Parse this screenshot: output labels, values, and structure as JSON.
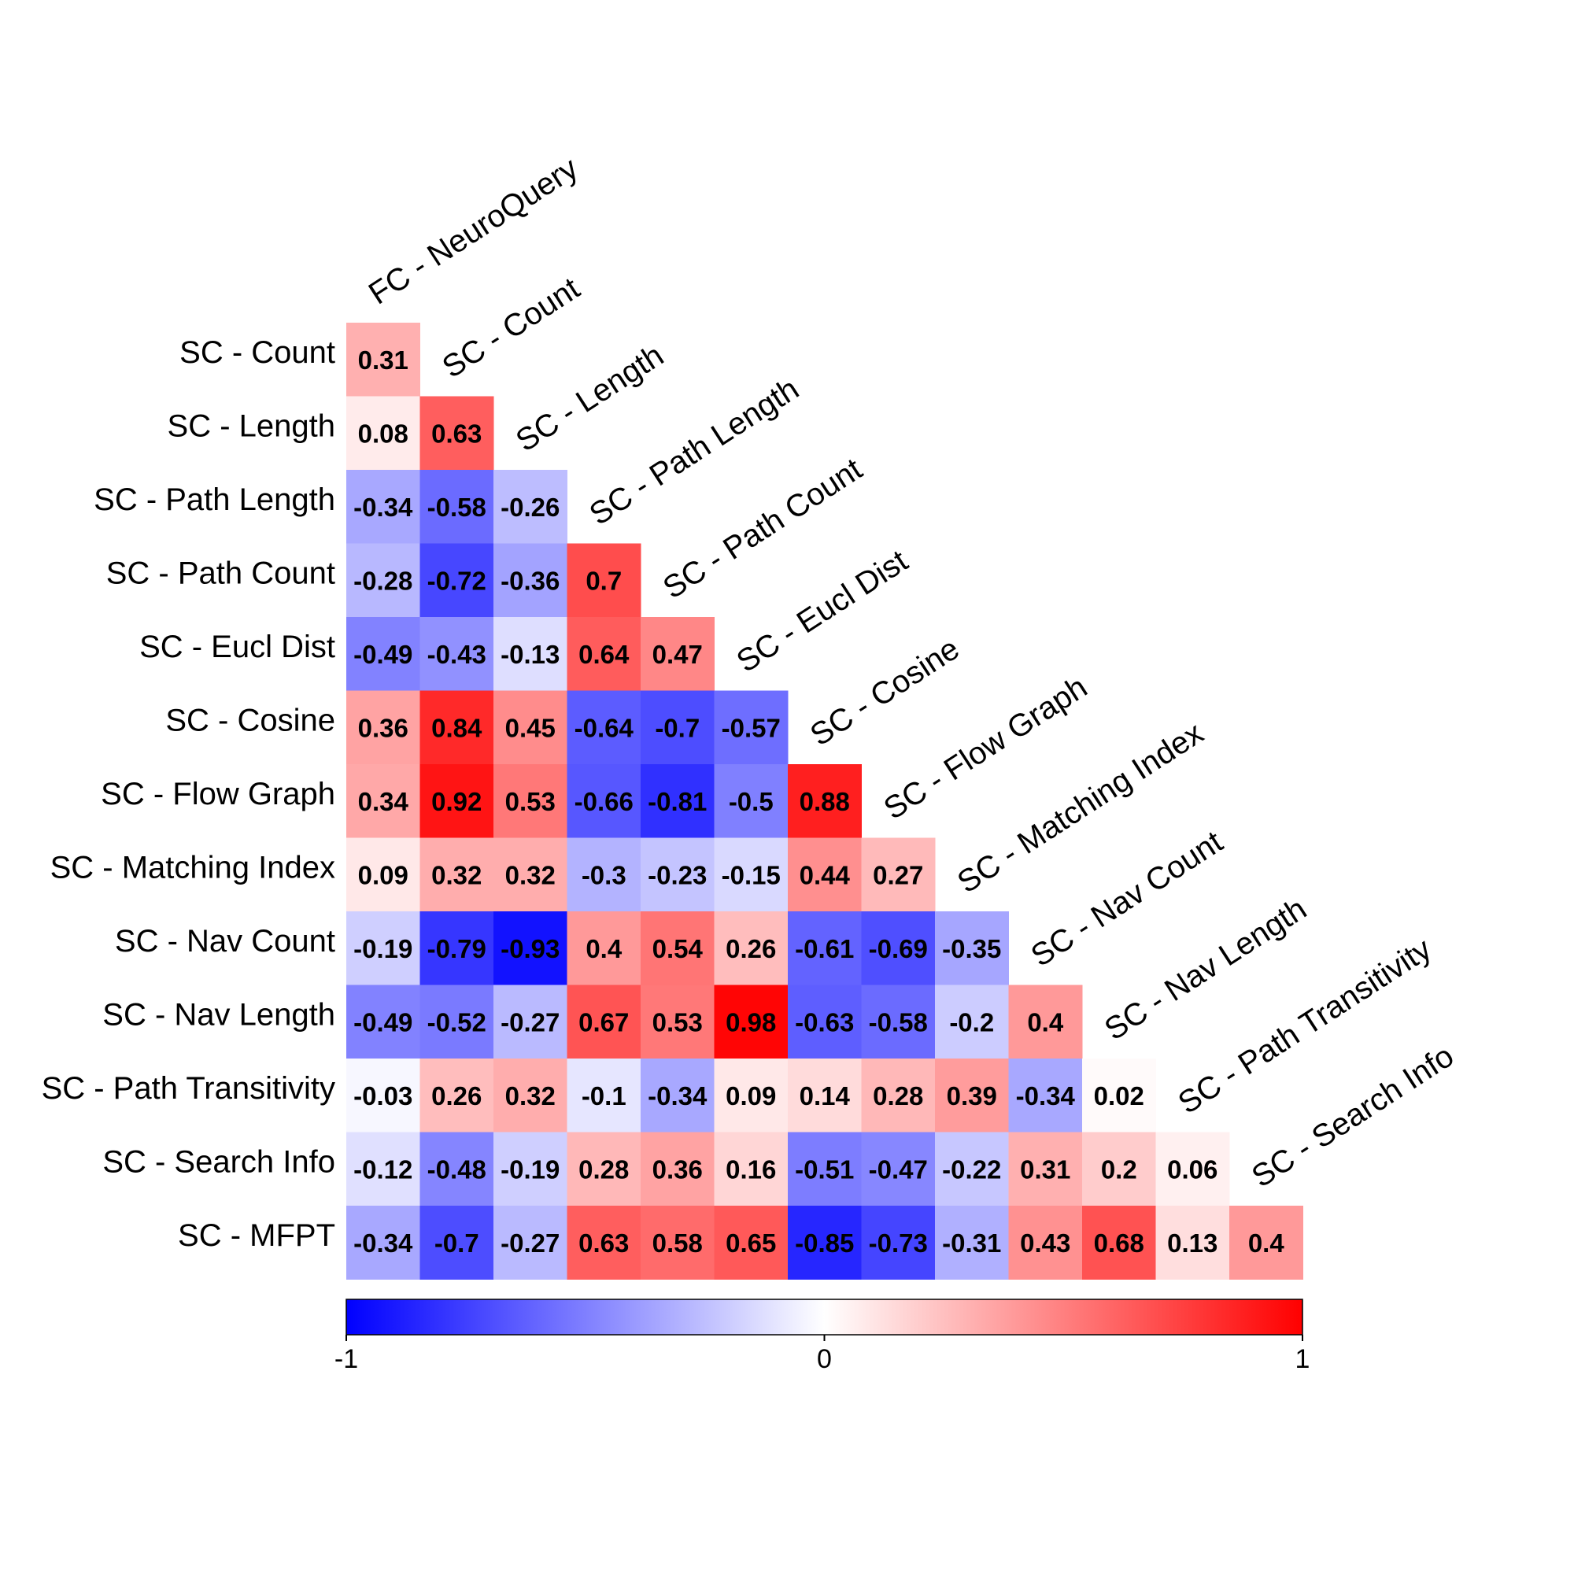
{
  "chart_data": {
    "type": "heatmap",
    "layout": "lower-triangle correlation matrix",
    "columns": [
      "FC - NeuroQuery",
      "SC - Count",
      "SC - Length",
      "SC - Path Length",
      "SC - Path Count",
      "SC - Eucl Dist",
      "SC - Cosine",
      "SC - Flow Graph",
      "SC - Matching Index",
      "SC - Nav Count",
      "SC - Nav Length",
      "SC - Path Transitivity",
      "SC - Search Info"
    ],
    "rows": [
      "SC - Count",
      "SC - Length",
      "SC - Path Length",
      "SC - Path Count",
      "SC - Eucl Dist",
      "SC - Cosine",
      "SC - Flow Graph",
      "SC - Matching Index",
      "SC - Nav Count",
      "SC - Nav Length",
      "SC - Path Transitivity",
      "SC - Search Info",
      "SC - MFPT"
    ],
    "values": [
      [
        0.31
      ],
      [
        0.08,
        0.63
      ],
      [
        -0.34,
        -0.58,
        -0.26
      ],
      [
        -0.28,
        -0.72,
        -0.36,
        0.7
      ],
      [
        -0.49,
        -0.43,
        -0.13,
        0.64,
        0.47
      ],
      [
        0.36,
        0.84,
        0.45,
        -0.64,
        -0.7,
        -0.57
      ],
      [
        0.34,
        0.92,
        0.53,
        -0.66,
        -0.81,
        -0.5,
        0.88
      ],
      [
        0.09,
        0.32,
        0.32,
        -0.3,
        -0.23,
        -0.15,
        0.44,
        0.27
      ],
      [
        -0.19,
        -0.79,
        -0.93,
        0.4,
        0.54,
        0.26,
        -0.61,
        -0.69,
        -0.35
      ],
      [
        -0.49,
        -0.52,
        -0.27,
        0.67,
        0.53,
        0.98,
        -0.63,
        -0.58,
        -0.2,
        0.4
      ],
      [
        -0.03,
        0.26,
        0.32,
        -0.1,
        -0.34,
        0.09,
        0.14,
        0.28,
        0.39,
        -0.34,
        0.02
      ],
      [
        -0.12,
        -0.48,
        -0.19,
        0.28,
        0.36,
        0.16,
        -0.51,
        -0.47,
        -0.22,
        0.31,
        0.2,
        0.06
      ],
      [
        -0.34,
        -0.7,
        -0.27,
        0.63,
        0.58,
        0.65,
        -0.85,
        -0.73,
        -0.31,
        0.43,
        0.68,
        0.13,
        0.4
      ]
    ],
    "colorbar": {
      "range": [
        -1,
        1
      ],
      "ticks": [
        "-1",
        "0",
        "1"
      ],
      "low_color": "#0000ff",
      "mid_color": "#ffffff",
      "high_color": "#ff0000",
      "orientation": "horizontal"
    },
    "cell_labels": "shown",
    "grid": false
  }
}
